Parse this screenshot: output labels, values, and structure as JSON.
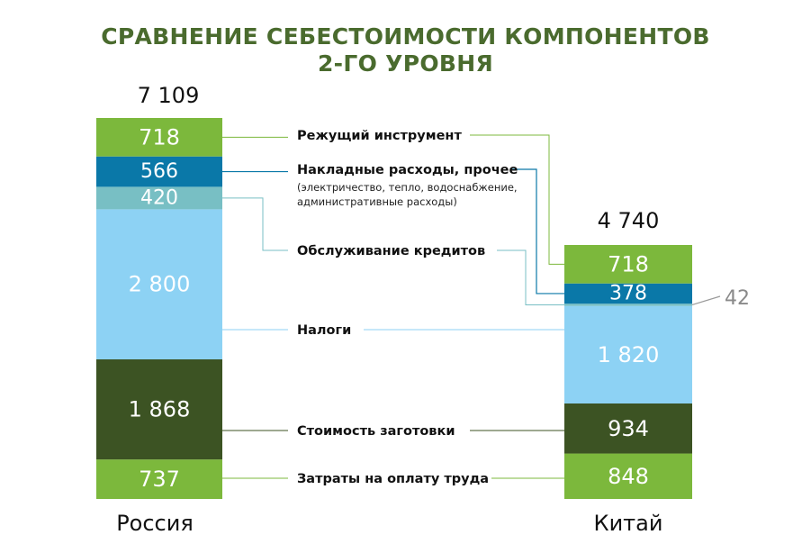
{
  "title": {
    "line1": "СРАВНЕНИЕ СЕБЕСТОИМОСТИ КОМПОНЕНТОВ",
    "line2": "2-ГО УРОВНЯ"
  },
  "chart_data": {
    "type": "bar",
    "stacked": true,
    "categories": [
      "Россия",
      "Китай"
    ],
    "totals": [
      "7 109",
      "4 740"
    ],
    "series": [
      {
        "name": "Затраты на оплату труда",
        "sub": "",
        "values": [
          737,
          848
        ],
        "labels": [
          "737",
          "848"
        ],
        "color": "#7cb83c"
      },
      {
        "name": "Стоимость заготовки",
        "sub": "",
        "values": [
          1868,
          934
        ],
        "labels": [
          "1 868",
          "934"
        ],
        "color": "#3c5323"
      },
      {
        "name": "Налоги",
        "sub": "",
        "values": [
          2800,
          1820
        ],
        "labels": [
          "2 800",
          "1 820"
        ],
        "color": "#8dd2f4"
      },
      {
        "name": "Обслуживание кредитов",
        "sub": "",
        "values": [
          420,
          42
        ],
        "labels": [
          "420",
          "42"
        ],
        "color": "#78bfc4"
      },
      {
        "name": "Накладные расходы, прочее",
        "sub": "(электричество, тепло, водоснабжение, административные расходы)",
        "sub_lines": [
          "(электричество, тепло, водоснабжение,",
          "административные расходы)"
        ],
        "values": [
          566,
          378
        ],
        "labels": [
          "566",
          "378"
        ],
        "color": "#0a78a8"
      },
      {
        "name": "Режущий инструмент",
        "sub": "",
        "values": [
          718,
          718
        ],
        "labels": [
          "718",
          "718"
        ],
        "color": "#7cb83c"
      }
    ],
    "legend": "center",
    "grid": false
  }
}
